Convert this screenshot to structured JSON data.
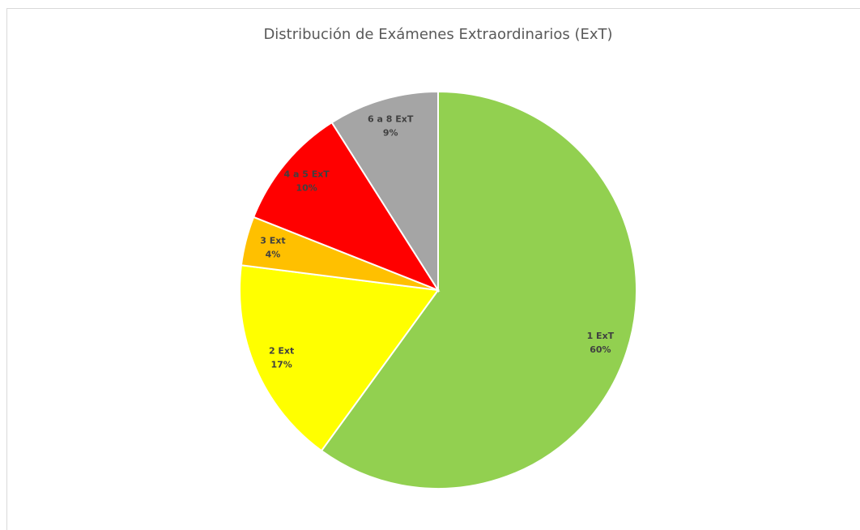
{
  "chart_data": {
    "type": "pie",
    "title": "Distribución de Exámenes Extraordinarios (ExT)",
    "categories": [
      "1 ExT",
      "2 Ext",
      "3 Ext",
      "4 a 5 ExT",
      "6 a 8 ExT"
    ],
    "values": [
      60,
      17,
      4,
      10,
      9
    ],
    "value_labels": [
      "60%",
      "17%",
      "4%",
      "10%",
      "9%"
    ],
    "colors": [
      "#92d050",
      "#ffff00",
      "#ffc000",
      "#ff0000",
      "#a5a5a5"
    ]
  }
}
